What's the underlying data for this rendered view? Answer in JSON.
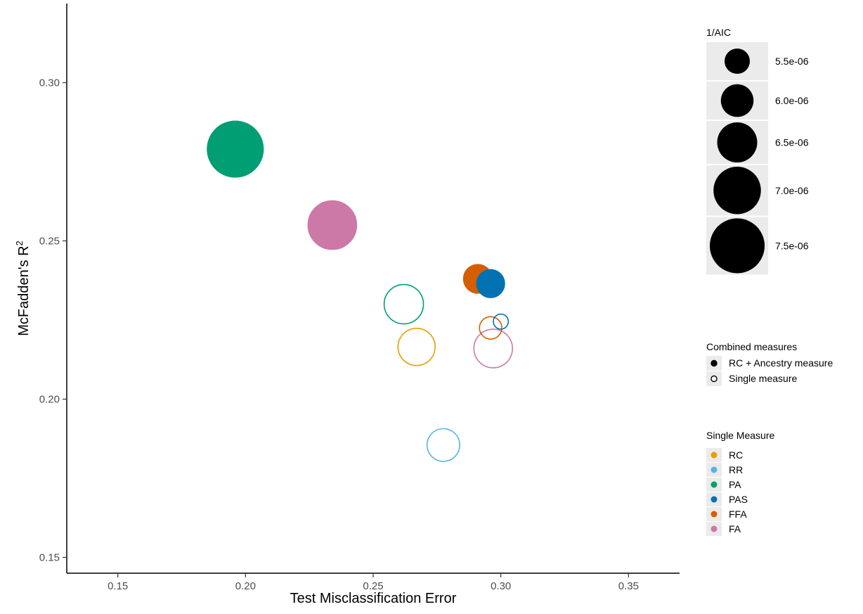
{
  "chart_data": {
    "type": "scatter",
    "xlabel": "Test Misclassification Error",
    "ylabel": "McFadden's R",
    "ylabel_superscript": "2",
    "xlim": [
      0.13,
      0.37
    ],
    "ylim": [
      0.145,
      0.325
    ],
    "x_ticks": [
      "0.15",
      "0.20",
      "0.25",
      "0.30",
      "0.35"
    ],
    "y_ticks": [
      "0.15",
      "0.20",
      "0.25",
      "0.30"
    ],
    "grid": false,
    "legend_position": "right",
    "size_legend": {
      "title": "1/AIC",
      "entries": [
        {
          "label": "5.5e-06",
          "value": 5.5e-06
        },
        {
          "label": "6.0e-06",
          "value": 6e-06
        },
        {
          "label": "6.5e-06",
          "value": 6.5e-06
        },
        {
          "label": "7.0e-06",
          "value": 7e-06
        },
        {
          "label": "7.5e-06",
          "value": 7.5e-06
        }
      ]
    },
    "shape_legend": {
      "title": "Combined measures",
      "entries": [
        {
          "label": "RC + Ancestry measure",
          "filled": true
        },
        {
          "label": "Single measure",
          "filled": false
        }
      ]
    },
    "color_legend": {
      "title": "Single Measure",
      "entries": [
        {
          "label": "RC",
          "color": "#E69F00"
        },
        {
          "label": "RR",
          "color": "#56B4E9"
        },
        {
          "label": "PA",
          "color": "#009E73"
        },
        {
          "label": "PAS",
          "color": "#0072B2"
        },
        {
          "label": "FFA",
          "color": "#D55E00"
        },
        {
          "label": "FA",
          "color": "#CC79A7"
        }
      ]
    },
    "points": [
      {
        "measure": "PA",
        "combined": true,
        "x": 0.196,
        "y": 0.279,
        "inv_aic": 7.6e-06
      },
      {
        "measure": "FA",
        "combined": true,
        "x": 0.234,
        "y": 0.255,
        "inv_aic": 7.1e-06
      },
      {
        "measure": "PAS",
        "combined": true,
        "x": 0.296,
        "y": 0.2365,
        "inv_aic": 5.7e-06
      },
      {
        "measure": "FFA",
        "combined": true,
        "x": 0.291,
        "y": 0.238,
        "inv_aic": 5.75e-06
      },
      {
        "measure": "PA",
        "combined": false,
        "x": 0.262,
        "y": 0.23,
        "inv_aic": 6.45e-06
      },
      {
        "measure": "RC",
        "combined": false,
        "x": 0.267,
        "y": 0.2165,
        "inv_aic": 6.3e-06
      },
      {
        "measure": "FFA",
        "combined": false,
        "x": 0.296,
        "y": 0.2225,
        "inv_aic": 5.3e-06
      },
      {
        "measure": "PAS",
        "combined": false,
        "x": 0.3,
        "y": 0.2245,
        "inv_aic": 4.8e-06
      },
      {
        "measure": "FA",
        "combined": false,
        "x": 0.297,
        "y": 0.216,
        "inv_aic": 6.4e-06
      },
      {
        "measure": "RR",
        "combined": false,
        "x": 0.2775,
        "y": 0.1855,
        "inv_aic": 6e-06
      }
    ]
  }
}
